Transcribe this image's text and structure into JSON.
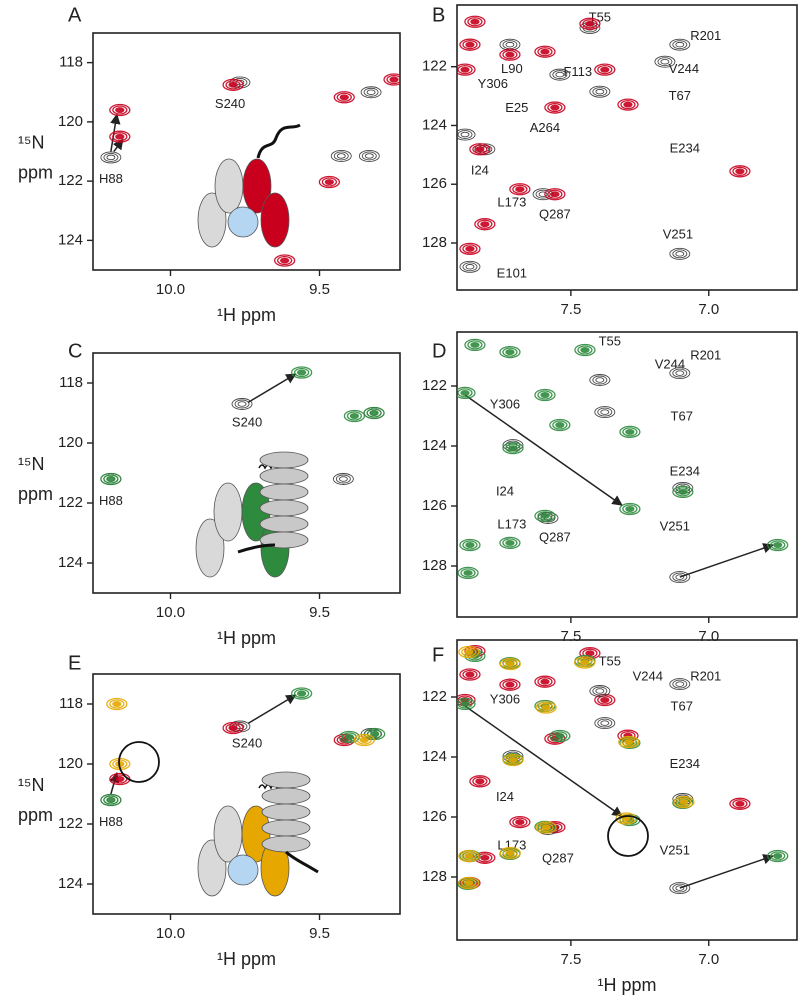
{
  "chart_data": [
    {
      "type": "scatter",
      "panel": "A",
      "xlabel": "¹H ppm",
      "ylabel": [
        "¹⁵N",
        "ppm"
      ],
      "xlim": [
        10.26,
        9.23
      ],
      "ylim": [
        125,
        117
      ],
      "xticks": [
        {
          "value": 10,
          "label": "10.0"
        },
        9.5
      ],
      "yticks": [
        118,
        120,
        122,
        124
      ],
      "series": [
        {
          "color": "#333333",
          "x": [
            10.2,
            9.767,
            9.327,
            9.427,
            9.333
          ],
          "y": [
            121.2,
            118.67,
            119.0,
            121.15,
            121.15
          ]
        },
        {
          "color": "#c8001e",
          "x": [
            10.17,
            10.17,
            9.79,
            9.417,
            9.25,
            9.467,
            9.617
          ],
          "y": [
            119.6,
            120.5,
            118.75,
            119.17,
            118.57,
            122.03,
            124.68
          ]
        }
      ],
      "annotations": [
        {
          "text": "S240",
          "x": 9.8,
          "y": 119.41
        },
        {
          "text": "H88",
          "x": 10.2,
          "y": 121.95
        }
      ],
      "arrows": [
        {
          "from": [
            10.2,
            121.0
          ],
          "to": [
            10.18,
            119.75
          ]
        },
        {
          "from": [
            10.19,
            121.0
          ],
          "to": [
            10.16,
            120.6
          ]
        }
      ]
    },
    {
      "type": "scatter",
      "panel": "B",
      "xlim": [
        7.913,
        6.68
      ],
      "ylim": [
        129.6,
        119.9
      ],
      "xticks": [
        7.5,
        {
          "value": 7,
          "label": "7.0"
        }
      ],
      "yticks": [
        122,
        124,
        126,
        128
      ],
      "series": [
        {
          "color": "#333333",
          "x": [
            7.431,
            7.105,
            7.395,
            7.159,
            7.601,
            7.105,
            7.721,
            7.884,
            7.866,
            7.54,
            7.812
          ],
          "y": [
            120.68,
            121.25,
            122.85,
            121.83,
            126.34,
            128.37,
            121.25,
            124.31,
            128.81,
            122.27,
            124.81
          ]
        },
        {
          "color": "#c8001e",
          "x": [
            7.848,
            7.866,
            7.884,
            7.558,
            7.431,
            7.293,
            6.887,
            7.685,
            7.558,
            7.866,
            7.812,
            7.721,
            7.594,
            7.377,
            7.83
          ],
          "y": [
            120.47,
            121.25,
            122.1,
            123.39,
            120.54,
            123.29,
            125.56,
            126.17,
            126.34,
            128.2,
            127.36,
            121.59,
            121.49,
            122.1,
            124.81
          ]
        }
      ],
      "annotations": [
        {
          "text": "T55",
          "x": 7.395,
          "y": 120.34
        },
        {
          "text": "R201",
          "x": 7.011,
          "y": 120.98
        },
        {
          "text": "L90",
          "x": 7.714,
          "y": 122.1
        },
        {
          "text": "F113",
          "x": 7.475,
          "y": 122.2
        },
        {
          "text": "V244",
          "x": 7.09,
          "y": 122.1
        },
        {
          "text": "Y306",
          "x": 7.783,
          "y": 122.61
        },
        {
          "text": "E25",
          "x": 7.696,
          "y": 123.42
        },
        {
          "text": "T67",
          "x": 7.105,
          "y": 123.02
        },
        {
          "text": "A264",
          "x": 7.594,
          "y": 124.1
        },
        {
          "text": "E234",
          "x": 7.087,
          "y": 124.81
        },
        {
          "text": "I24",
          "x": 7.83,
          "y": 125.56
        },
        {
          "text": "L173",
          "x": 7.714,
          "y": 126.64
        },
        {
          "text": "Q287",
          "x": 7.558,
          "y": 127.05
        },
        {
          "text": "V251",
          "x": 7.112,
          "y": 127.73
        },
        {
          "text": "E101",
          "x": 7.714,
          "y": 129.05
        }
      ],
      "arrows": []
    },
    {
      "type": "scatter",
      "panel": "C",
      "xlabel": "¹H ppm",
      "ylabel": [
        "¹⁵N",
        "ppm"
      ],
      "xlim": [
        10.26,
        9.23
      ],
      "ylim": [
        125,
        117
      ],
      "xticks": [
        {
          "value": 10,
          "label": "10.0"
        },
        9.5
      ],
      "yticks": [
        118,
        120,
        122,
        124
      ],
      "series": [
        {
          "color": "#333333",
          "x": [
            10.2,
            9.76,
            9.317,
            9.42
          ],
          "y": [
            121.2,
            118.7,
            119.0,
            121.2
          ]
        },
        {
          "color": "#2e8b3e",
          "x": [
            10.2,
            9.56,
            9.383,
            9.317
          ],
          "y": [
            121.2,
            117.65,
            119.1,
            119.0
          ]
        }
      ],
      "annotations": [
        {
          "text": "S240",
          "x": 9.743,
          "y": 119.33
        },
        {
          "text": "H88",
          "x": 10.2,
          "y": 121.95
        }
      ],
      "arrows": [
        {
          "from": [
            9.74,
            118.65
          ],
          "to": [
            9.58,
            117.7
          ]
        }
      ]
    },
    {
      "type": "scatter",
      "panel": "D",
      "xlim": [
        7.913,
        6.68
      ],
      "ylim": [
        129.7,
        120.2
      ],
      "xticks": [
        7.5,
        {
          "value": 7,
          "label": "7.0"
        }
      ],
      "yticks": [
        122,
        124,
        126,
        128
      ],
      "series": [
        {
          "color": "#333333",
          "x": [
            7.105,
            7.395,
            7.377,
            7.094,
            7.105,
            7.583,
            7.71
          ],
          "y": [
            121.57,
            121.8,
            122.87,
            125.4,
            128.37,
            126.4,
            123.97
          ]
        },
        {
          "color": "#2e8b3e",
          "x": [
            7.848,
            7.721,
            7.449,
            7.594,
            7.884,
            7.286,
            7.094,
            7.71,
            7.721,
            7.594,
            7.866,
            7.873,
            7.286,
            6.75,
            7.54
          ],
          "y": [
            120.63,
            120.87,
            120.8,
            122.3,
            122.23,
            123.53,
            125.53,
            124.07,
            127.23,
            126.33,
            127.3,
            128.23,
            126.1,
            127.3,
            123.3
          ]
        }
      ],
      "annotations": [
        {
          "text": "T55",
          "x": 7.359,
          "y": 120.53
        },
        {
          "text": "V244",
          "x": 7.141,
          "y": 121.3
        },
        {
          "text": "R201",
          "x": 7.011,
          "y": 121.0
        },
        {
          "text": "Y306",
          "x": 7.739,
          "y": 122.63
        },
        {
          "text": "T67",
          "x": 7.098,
          "y": 123.03
        },
        {
          "text": "E234",
          "x": 7.087,
          "y": 124.87
        },
        {
          "text": "I24",
          "x": 7.739,
          "y": 125.53
        },
        {
          "text": "L173",
          "x": 7.714,
          "y": 126.63
        },
        {
          "text": "Q287",
          "x": 7.558,
          "y": 127.07
        },
        {
          "text": "V251",
          "x": 7.123,
          "y": 126.7
        }
      ],
      "arrows": [
        {
          "from": [
            7.884,
            122.3
          ],
          "to": [
            7.315,
            125.97
          ]
        },
        {
          "from": [
            7.105,
            128.37
          ],
          "to": [
            6.768,
            127.3
          ]
        }
      ]
    },
    {
      "type": "scatter",
      "panel": "E",
      "xlabel": "¹H ppm",
      "ylabel": [
        "¹⁵N",
        "ppm"
      ],
      "xlim": [
        10.26,
        9.23
      ],
      "ylim": [
        125,
        117
      ],
      "xticks": [
        {
          "value": 10,
          "label": "10.0"
        },
        9.5
      ],
      "yticks": [
        118,
        120,
        122,
        124
      ],
      "series": [
        {
          "color": "#333333",
          "x": [
            10.2,
            9.767,
            9.327
          ],
          "y": [
            121.2,
            118.75,
            119.0
          ]
        },
        {
          "color": "#c8001e",
          "x": [
            10.17,
            9.79,
            9.417
          ],
          "y": [
            120.5,
            118.8,
            119.2
          ]
        },
        {
          "color": "#2e8b3e",
          "x": [
            10.2,
            9.56,
            9.315,
            9.4
          ],
          "y": [
            121.2,
            117.65,
            119.0,
            119.1
          ]
        },
        {
          "color": "#e6a800",
          "x": [
            10.17,
            10.18,
            9.35
          ],
          "y": [
            120.0,
            118.0,
            119.2
          ]
        }
      ],
      "annotations": [
        {
          "text": "S240",
          "x": 9.743,
          "y": 119.33
        },
        {
          "text": "H88",
          "x": 10.2,
          "y": 121.95
        }
      ],
      "arrows": [
        {
          "from": [
            10.2,
            121.0
          ],
          "to": [
            10.18,
            120.3
          ]
        },
        {
          "from": [
            9.74,
            118.65
          ],
          "to": [
            9.58,
            117.7
          ]
        }
      ]
    },
    {
      "type": "scatter",
      "panel": "F",
      "xlabel": "¹H ppm",
      "xlim": [
        7.913,
        6.68
      ],
      "ylim": [
        130.1,
        120.1
      ],
      "xticks": [
        7.5,
        {
          "value": 7,
          "label": "7.0"
        }
      ],
      "yticks": [
        122,
        124,
        126,
        128
      ],
      "series": [
        {
          "color": "#c8001e",
          "x": [
            7.848,
            7.866,
            7.884,
            7.558,
            7.431,
            7.293,
            6.887,
            7.685,
            7.558,
            7.866,
            7.812,
            7.721,
            7.594,
            7.377,
            7.83
          ],
          "y": [
            120.47,
            121.25,
            122.1,
            123.39,
            120.54,
            123.29,
            125.56,
            126.17,
            126.34,
            128.2,
            127.36,
            121.59,
            121.49,
            122.1,
            124.81
          ]
        },
        {
          "color": "#333333",
          "x": [
            7.105,
            7.395,
            7.377,
            7.094,
            7.105,
            7.583,
            7.71
          ],
          "y": [
            121.57,
            121.8,
            122.87,
            125.4,
            128.37,
            126.4,
            123.97
          ]
        },
        {
          "color": "#2e8b3e",
          "x": [
            7.848,
            7.721,
            7.449,
            7.594,
            7.884,
            7.286,
            7.094,
            7.71,
            7.721,
            7.594,
            7.866,
            7.873,
            7.286,
            6.75,
            7.54
          ],
          "y": [
            120.63,
            120.87,
            120.8,
            122.3,
            122.23,
            123.53,
            125.53,
            124.07,
            127.23,
            126.33,
            127.3,
            128.23,
            126.1,
            127.3,
            123.3
          ]
        },
        {
          "color": "#e6a800",
          "x": [
            7.87,
            7.72,
            7.45,
            7.59,
            7.29,
            7.09,
            7.71,
            7.72,
            7.59,
            7.87,
            7.87,
            7.3
          ],
          "y": [
            120.5,
            120.9,
            120.85,
            122.35,
            123.5,
            125.5,
            124.1,
            127.2,
            126.35,
            127.3,
            128.2,
            126.05
          ]
        }
      ],
      "annotations": [
        {
          "text": "T55",
          "x": 7.359,
          "y": 120.83
        },
        {
          "text": "V244",
          "x": 7.221,
          "y": 121.33
        },
        {
          "text": "R201",
          "x": 7.011,
          "y": 121.33
        },
        {
          "text": "Y306",
          "x": 7.739,
          "y": 122.1
        },
        {
          "text": "T67",
          "x": 7.098,
          "y": 122.34
        },
        {
          "text": "E234",
          "x": 7.087,
          "y": 124.25
        },
        {
          "text": "I24",
          "x": 7.739,
          "y": 125.36
        },
        {
          "text": "L173",
          "x": 7.714,
          "y": 126.97
        },
        {
          "text": "Q287",
          "x": 7.547,
          "y": 127.4
        },
        {
          "text": "V251",
          "x": 7.123,
          "y": 127.13
        }
      ],
      "arrows": [
        {
          "from": [
            7.884,
            122.3
          ],
          "to": [
            7.315,
            125.97
          ]
        },
        {
          "from": [
            7.105,
            128.37
          ],
          "to": [
            6.768,
            127.3
          ]
        }
      ]
    }
  ]
}
